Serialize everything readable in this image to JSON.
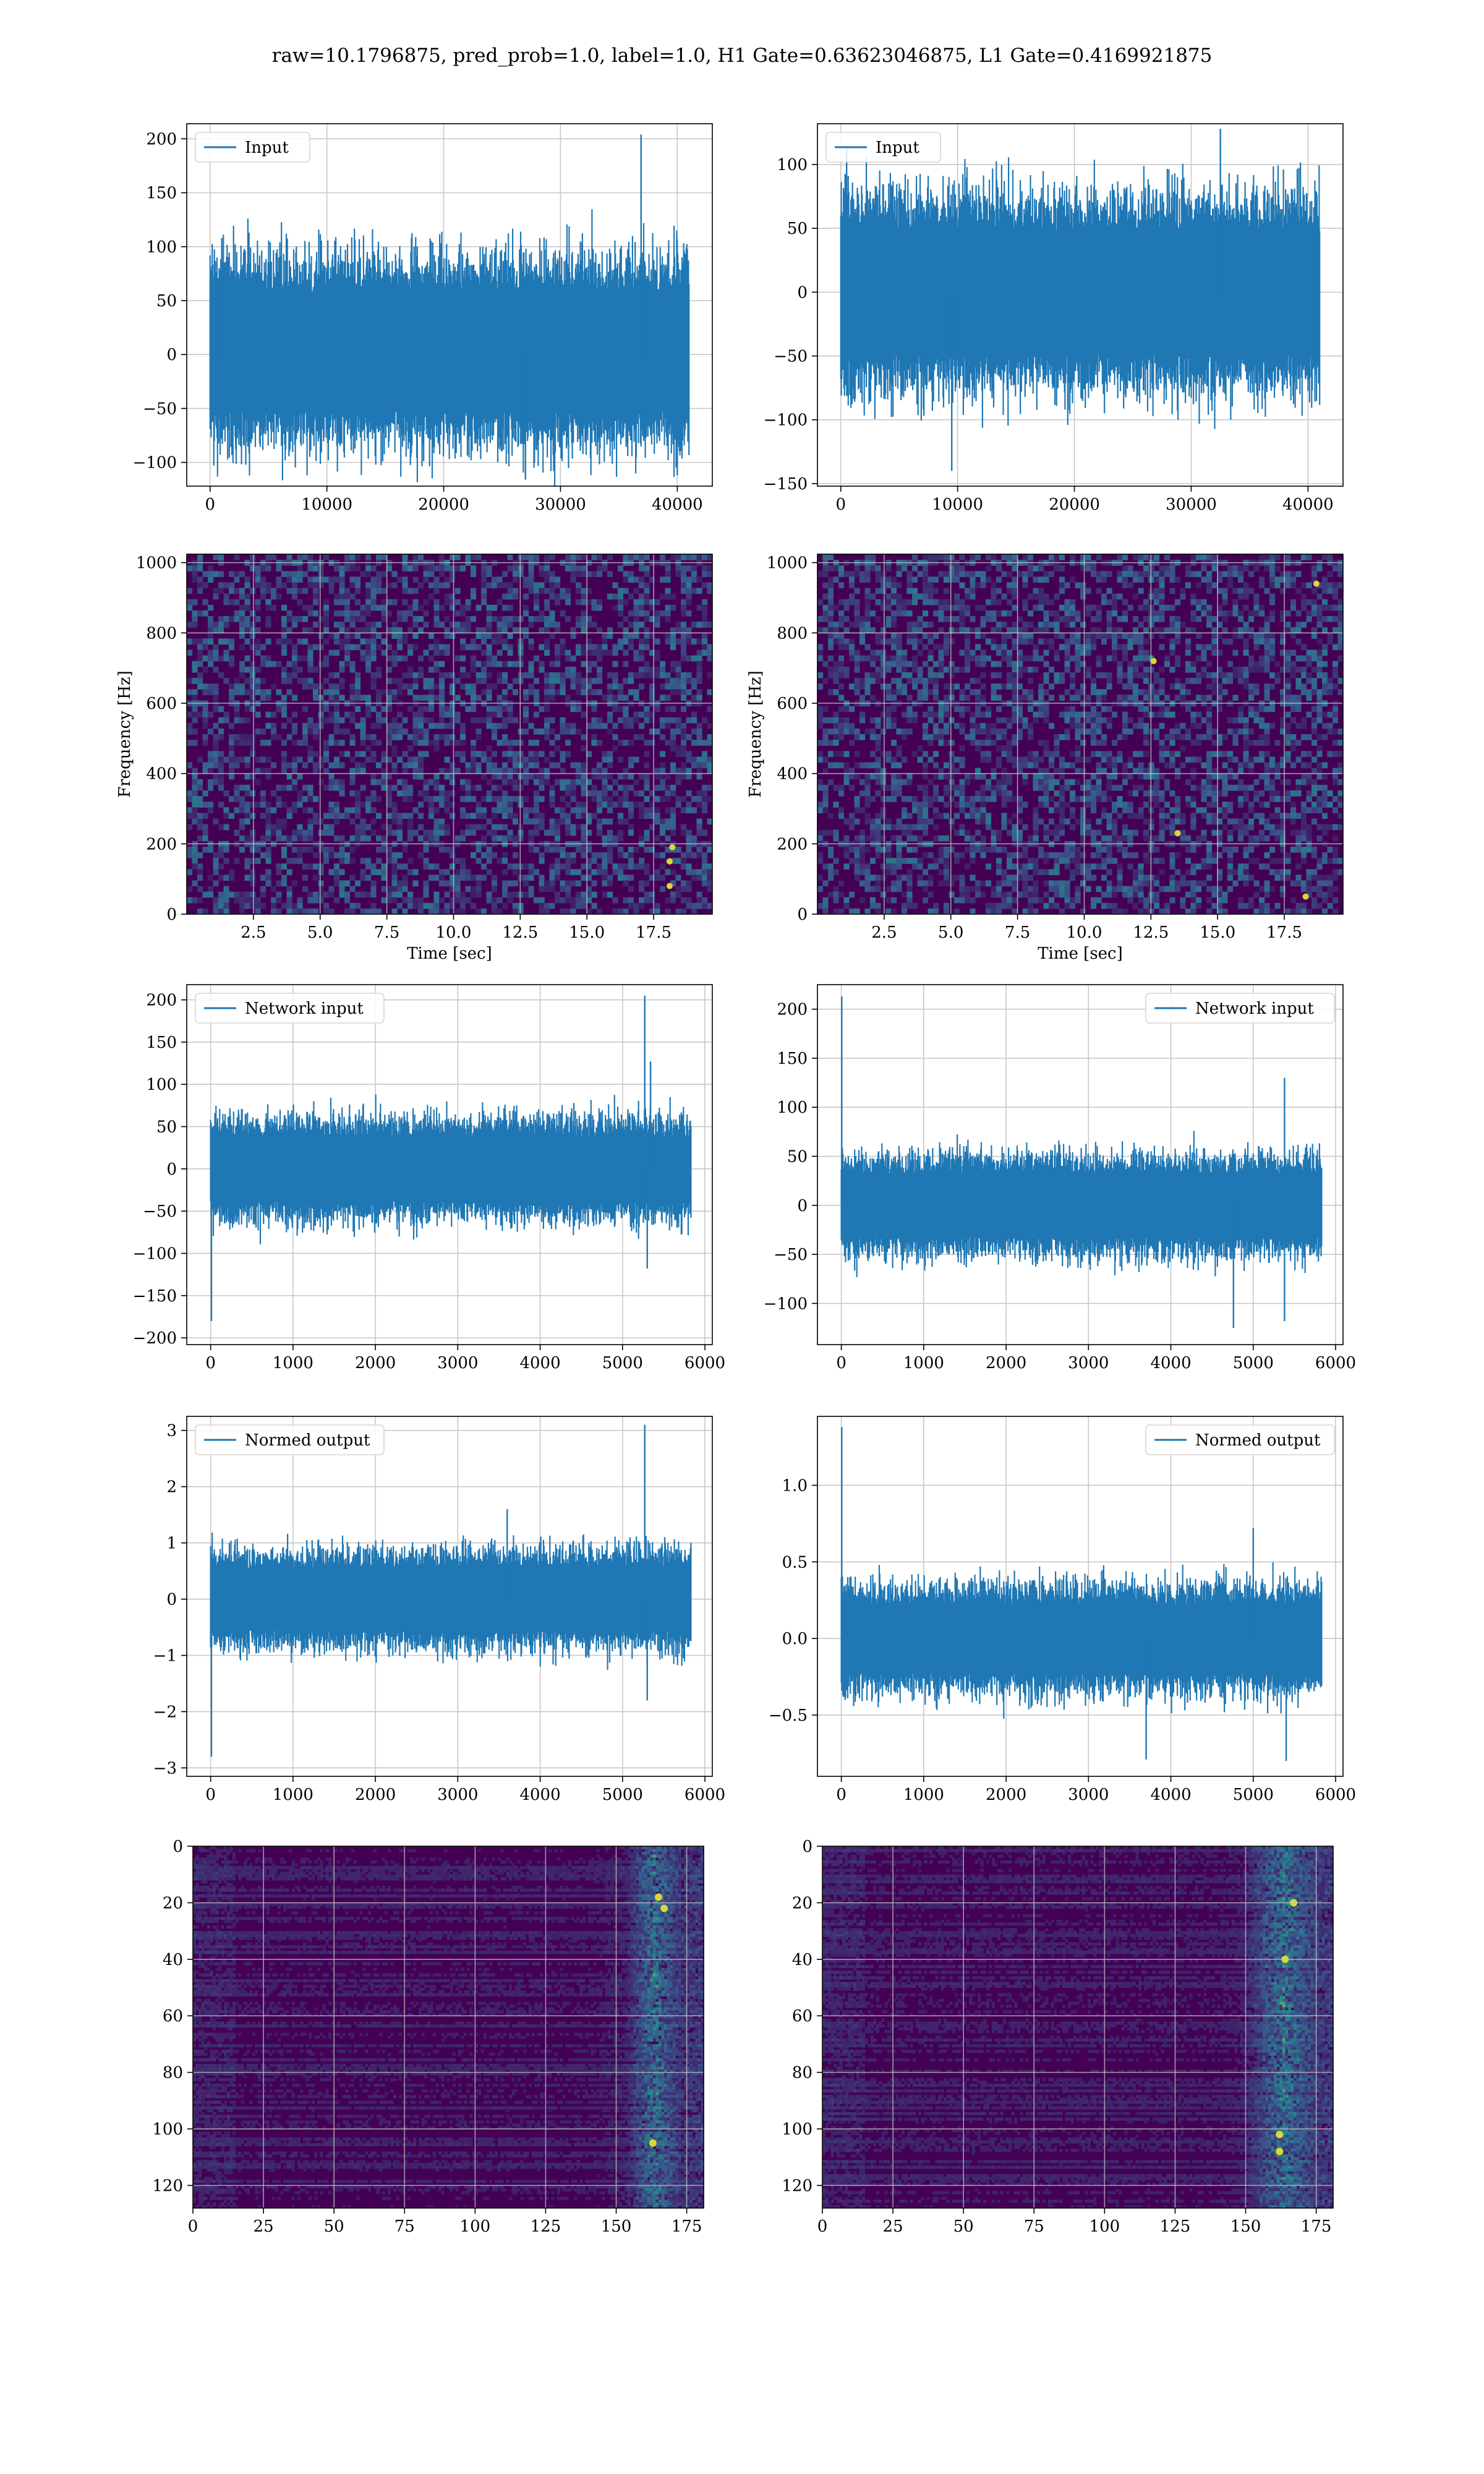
{
  "figure": {
    "title": "raw=10.1796875, pred_prob=1.0, label=1.0, H1 Gate=0.63623046875, L1 Gate=0.4169921875"
  },
  "colors": {
    "series": "#1f77b4",
    "grid": "#c8c8c8",
    "axes": "#000000",
    "heatmap_low": "#440154",
    "heatmap_mid": "#21918c",
    "heatmap_high": "#fde725"
  },
  "chart_data": [
    {
      "id": "h1-input",
      "type": "line",
      "legend": "Input",
      "legend_loc": "upper-left",
      "xlabel": "",
      "ylabel": "",
      "xlim": [
        -2000,
        43000
      ],
      "ylim": [
        -122,
        214
      ],
      "xticks": [
        0,
        10000,
        20000,
        30000,
        40000
      ],
      "xtick_labels": [
        "0",
        "10000",
        "20000",
        "30000",
        "40000"
      ],
      "yticks": [
        -100,
        -50,
        0,
        50,
        100,
        150,
        200
      ],
      "ytick_labels": [
        "−100",
        "−50",
        "0",
        "50",
        "100",
        "150",
        "200"
      ],
      "grid": true,
      "x": [
        0,
        10000,
        20000,
        30000,
        36900,
        41000
      ],
      "y": [
        -20,
        75,
        -80,
        90,
        204,
        -110
      ],
      "envelope": {
        "x_start": 0,
        "x_end": 41000,
        "lower": -52,
        "upper": 58
      },
      "peaks": [
        {
          "x": 36900,
          "y": 204
        },
        {
          "x": 1000,
          "y": 108
        },
        {
          "x": 27000,
          "y": -116
        },
        {
          "x": 40000,
          "y": -112
        }
      ]
    },
    {
      "id": "l1-input",
      "type": "line",
      "legend": "Input",
      "legend_loc": "upper-left",
      "xlabel": "",
      "ylabel": "",
      "xlim": [
        -2000,
        43000
      ],
      "ylim": [
        -152,
        132
      ],
      "xticks": [
        0,
        10000,
        20000,
        30000,
        40000
      ],
      "xtick_labels": [
        "0",
        "10000",
        "20000",
        "30000",
        "40000"
      ],
      "yticks": [
        -150,
        -100,
        -50,
        0,
        50,
        100
      ],
      "ytick_labels": [
        "−150",
        "−100",
        "−50",
        "0",
        "50",
        "100"
      ],
      "grid": true,
      "x": [
        0,
        9500,
        20000,
        30000,
        41000
      ],
      "y": [
        -95,
        -140,
        120,
        130,
        -90
      ],
      "envelope": {
        "x_start": 0,
        "x_end": 41000,
        "lower": -48,
        "upper": 48
      },
      "peaks": [
        {
          "x": 9500,
          "y": -140
        },
        {
          "x": 32500,
          "y": 128
        },
        {
          "x": 500,
          "y": 112
        }
      ]
    },
    {
      "id": "h1-spectrogram",
      "type": "heatmap",
      "xlabel": "Time [sec]",
      "ylabel": "Frequency [Hz]",
      "xlim": [
        0,
        19.7
      ],
      "ylim": [
        0,
        1024
      ],
      "xticks": [
        2.5,
        5.0,
        7.5,
        10.0,
        12.5,
        15.0,
        17.5
      ],
      "xtick_labels": [
        "2.5",
        "5.0",
        "7.5",
        "10.0",
        "12.5",
        "15.0",
        "17.5"
      ],
      "yticks": [
        0,
        200,
        400,
        600,
        800,
        1000
      ],
      "ytick_labels": [
        "0",
        "200",
        "400",
        "600",
        "800",
        "1000"
      ],
      "grid": true,
      "colormap": "viridis",
      "hot_spots": [
        {
          "x": 18.1,
          "y": 80
        },
        {
          "x": 18.1,
          "y": 150
        },
        {
          "x": 18.2,
          "y": 190
        }
      ]
    },
    {
      "id": "l1-spectrogram",
      "type": "heatmap",
      "xlabel": "Time [sec]",
      "ylabel": "Frequency [Hz]",
      "xlim": [
        0,
        19.7
      ],
      "ylim": [
        0,
        1024
      ],
      "xticks": [
        2.5,
        5.0,
        7.5,
        10.0,
        12.5,
        15.0,
        17.5
      ],
      "xtick_labels": [
        "2.5",
        "5.0",
        "7.5",
        "10.0",
        "12.5",
        "15.0",
        "17.5"
      ],
      "yticks": [
        0,
        200,
        400,
        600,
        800,
        1000
      ],
      "ytick_labels": [
        "0",
        "200",
        "400",
        "600",
        "800",
        "1000"
      ],
      "grid": true,
      "colormap": "viridis",
      "hot_spots": [
        {
          "x": 18.3,
          "y": 50
        },
        {
          "x": 13.5,
          "y": 230
        },
        {
          "x": 12.6,
          "y": 720
        },
        {
          "x": 18.7,
          "y": 940
        }
      ]
    },
    {
      "id": "h1-network-input",
      "type": "line",
      "legend": "Network input",
      "legend_loc": "upper-left",
      "xlabel": "",
      "ylabel": "",
      "xlim": [
        -290,
        6090
      ],
      "ylim": [
        -208,
        218
      ],
      "xticks": [
        0,
        1000,
        2000,
        3000,
        4000,
        5000,
        6000
      ],
      "xtick_labels": [
        "0",
        "1000",
        "2000",
        "3000",
        "4000",
        "5000",
        "6000"
      ],
      "yticks": [
        -200,
        -150,
        -100,
        -50,
        0,
        50,
        100,
        150,
        200
      ],
      "ytick_labels": [
        "−200",
        "−150",
        "−100",
        "−50",
        "0",
        "50",
        "100",
        "150",
        "200"
      ],
      "grid": true,
      "x": [
        0,
        1000,
        2000,
        3000,
        4000,
        5270,
        5830
      ],
      "y": [
        -180,
        80,
        -70,
        90,
        -60,
        205,
        20
      ],
      "envelope": {
        "x_start": 0,
        "x_end": 5830,
        "lower": -38,
        "upper": 38
      },
      "peaks": [
        {
          "x": 5270,
          "y": 205
        },
        {
          "x": 10,
          "y": -180
        },
        {
          "x": 5300,
          "y": -118
        },
        {
          "x": 5340,
          "y": 127
        }
      ]
    },
    {
      "id": "l1-network-input",
      "type": "line",
      "legend": "Network input",
      "legend_loc": "upper-right",
      "xlabel": "",
      "ylabel": "",
      "xlim": [
        -290,
        6090
      ],
      "ylim": [
        -142,
        225
      ],
      "xticks": [
        0,
        1000,
        2000,
        3000,
        4000,
        5000,
        6000
      ],
      "xtick_labels": [
        "0",
        "1000",
        "2000",
        "3000",
        "4000",
        "5000",
        "6000"
      ],
      "yticks": [
        -100,
        -50,
        0,
        50,
        100,
        150,
        200
      ],
      "ytick_labels": [
        "−100",
        "−50",
        "0",
        "50",
        "100",
        "150",
        "200"
      ],
      "grid": true,
      "x": [
        0,
        1000,
        2000,
        3000,
        4000,
        5000,
        5830
      ],
      "y": [
        213,
        -60,
        100,
        -80,
        90,
        -118,
        40
      ],
      "envelope": {
        "x_start": 0,
        "x_end": 5830,
        "lower": -32,
        "upper": 32
      },
      "peaks": [
        {
          "x": 5,
          "y": 213
        },
        {
          "x": 5380,
          "y": -118
        },
        {
          "x": 4760,
          "y": -125
        },
        {
          "x": 5380,
          "y": 130
        }
      ]
    },
    {
      "id": "h1-normed-output",
      "type": "line",
      "legend": "Normed output",
      "legend_loc": "upper-left",
      "xlabel": "",
      "ylabel": "",
      "xlim": [
        -290,
        6090
      ],
      "ylim": [
        -3.15,
        3.25
      ],
      "xticks": [
        0,
        1000,
        2000,
        3000,
        4000,
        5000,
        6000
      ],
      "xtick_labels": [
        "0",
        "1000",
        "2000",
        "3000",
        "4000",
        "5000",
        "6000"
      ],
      "yticks": [
        -3,
        -2,
        -1,
        0,
        1,
        2,
        3
      ],
      "ytick_labels": [
        "−3",
        "−2",
        "−1",
        "0",
        "1",
        "2",
        "3"
      ],
      "grid": true,
      "x": [
        0,
        1000,
        2000,
        3000,
        4000,
        5270,
        5830
      ],
      "y": [
        -2.8,
        1.2,
        -1.1,
        1.5,
        -0.9,
        3.1,
        0.3
      ],
      "envelope": {
        "x_start": 0,
        "x_end": 5830,
        "lower": -0.55,
        "upper": 0.55
      },
      "peaks": [
        {
          "x": 5270,
          "y": 3.1
        },
        {
          "x": 10,
          "y": -2.8
        },
        {
          "x": 5300,
          "y": -1.8
        },
        {
          "x": 3600,
          "y": 1.6
        }
      ]
    },
    {
      "id": "l1-normed-output",
      "type": "line",
      "legend": "Normed output",
      "legend_loc": "upper-right",
      "xlabel": "",
      "ylabel": "",
      "xlim": [
        -290,
        6090
      ],
      "ylim": [
        -0.9,
        1.45
      ],
      "xticks": [
        0,
        1000,
        2000,
        3000,
        4000,
        5000,
        6000
      ],
      "xtick_labels": [
        "0",
        "1000",
        "2000",
        "3000",
        "4000",
        "5000",
        "6000"
      ],
      "yticks": [
        -0.5,
        0.0,
        0.5,
        1.0
      ],
      "ytick_labels": [
        "−0.5",
        "0.0",
        "0.5",
        "1.0"
      ],
      "grid": true,
      "x": [
        0,
        1000,
        2000,
        3000,
        4000,
        5000,
        5830
      ],
      "y": [
        1.38,
        -0.5,
        0.6,
        -0.55,
        0.55,
        -0.75,
        0.3
      ],
      "envelope": {
        "x_start": 0,
        "x_end": 5830,
        "lower": -0.22,
        "upper": 0.22
      },
      "peaks": [
        {
          "x": 5,
          "y": 1.38
        },
        {
          "x": 3700,
          "y": -0.79
        },
        {
          "x": 5400,
          "y": -0.8
        },
        {
          "x": 5000,
          "y": 0.72
        }
      ]
    },
    {
      "id": "h1-feature-map",
      "type": "heatmap",
      "xlabel": "",
      "ylabel": "",
      "xlim": [
        0,
        181
      ],
      "ylim": [
        128,
        0
      ],
      "xticks": [
        0,
        25,
        50,
        75,
        100,
        125,
        150,
        175
      ],
      "xtick_labels": [
        "0",
        "25",
        "50",
        "75",
        "100",
        "125",
        "150",
        "175"
      ],
      "yticks": [
        0,
        20,
        40,
        60,
        80,
        100,
        120
      ],
      "ytick_labels": [
        "0",
        "20",
        "40",
        "60",
        "80",
        "100",
        "120"
      ],
      "grid": true,
      "colormap": "viridis",
      "hot_band": {
        "x_center": 163,
        "x_width": 10
      },
      "hot_spots": [
        {
          "x": 165,
          "y": 18
        },
        {
          "x": 167,
          "y": 22
        },
        {
          "x": 163,
          "y": 105
        }
      ]
    },
    {
      "id": "l1-feature-map",
      "type": "heatmap",
      "xlabel": "",
      "ylabel": "",
      "xlim": [
        0,
        181
      ],
      "ylim": [
        128,
        0
      ],
      "xticks": [
        0,
        25,
        50,
        75,
        100,
        125,
        150,
        175
      ],
      "xtick_labels": [
        "0",
        "25",
        "50",
        "75",
        "100",
        "125",
        "150",
        "175"
      ],
      "yticks": [
        0,
        20,
        40,
        60,
        80,
        100,
        120
      ],
      "ytick_labels": [
        "0",
        "20",
        "40",
        "60",
        "80",
        "100",
        "120"
      ],
      "grid": true,
      "colormap": "viridis",
      "hot_band": {
        "x_center": 163,
        "x_width": 14
      },
      "hot_spots": [
        {
          "x": 167,
          "y": 20
        },
        {
          "x": 164,
          "y": 40
        },
        {
          "x": 162,
          "y": 102
        },
        {
          "x": 162,
          "y": 108
        }
      ]
    }
  ]
}
